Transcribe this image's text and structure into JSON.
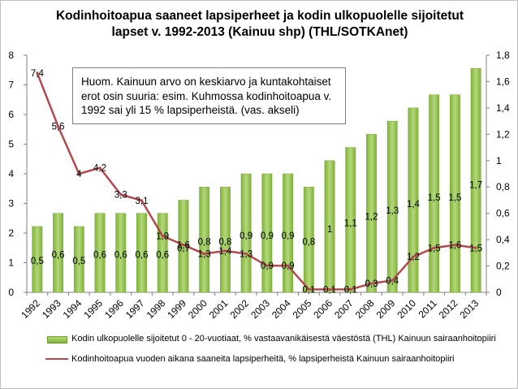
{
  "chart_data": {
    "type": "bar+line",
    "title_lines": [
      "Kodinhoitoapua  saaneet lapsiperheet ja kodin ulkopuolelle sijoitetut",
      "lapset v. 1992-2013 (Kainuu shp) (THL/SOTKAnet)"
    ],
    "categories": [
      "1992",
      "1993",
      "1994",
      "1995",
      "1996",
      "1997",
      "1998",
      "1999",
      "2000",
      "2001",
      "2002",
      "2003",
      "2004",
      "2005",
      "2006",
      "2007",
      "2008",
      "2009",
      "2010",
      "2011",
      "2012",
      "2013"
    ],
    "bar_series": {
      "name": "Kodin ulkopuolelle sijoitetut 0 - 20-vuotiaat, % vastaavanikäisestä väestöstä (THL) Kainuun sairaanhoitopiiri",
      "axis": "right",
      "values": [
        0.5,
        0.6,
        0.5,
        0.6,
        0.6,
        0.6,
        0.6,
        0.7,
        0.8,
        0.8,
        0.9,
        0.9,
        0.9,
        0.8,
        1.0,
        1.1,
        1.2,
        1.3,
        1.4,
        1.5,
        1.5,
        1.7
      ],
      "labels": [
        "0,5",
        "0,6",
        "0,5",
        "0,6",
        "0,6",
        "0,6",
        "0,6",
        "0,7",
        "0,8",
        "0,8",
        "0,9",
        "0,9",
        "0,9",
        "0,8",
        "1",
        "1,1",
        "1,2",
        "1,3",
        "1,4",
        "1,5",
        "1,5",
        "1,7"
      ],
      "color": "#92c050"
    },
    "line_series": {
      "name": "Kodinhoitoapua vuoden aikana saaneita lapsiperheitä, % lapsiperheistä Kainuun sairaanhoitopiiri",
      "axis": "left",
      "values": [
        7.4,
        5.6,
        4.0,
        4.2,
        3.3,
        3.1,
        1.9,
        1.6,
        1.3,
        1.4,
        1.3,
        0.9,
        0.9,
        0.1,
        0.1,
        0.1,
        0.3,
        0.4,
        1.2,
        1.5,
        1.6,
        1.5
      ],
      "labels": [
        "7,4",
        "5,6",
        "4",
        "4,2",
        "3,3",
        "3,1",
        "1,9",
        "1,6",
        "1,3",
        "1,4",
        "1,3",
        "0,9",
        "0,9",
        "0,1",
        "0,1",
        "0,1",
        "0,3",
        "0,4",
        "1,2",
        "1,5",
        "1,6",
        "1,5"
      ],
      "color": "#b04a4f"
    },
    "y_left": {
      "min": 0,
      "max": 8,
      "ticks": [
        "0",
        "1",
        "2",
        "3",
        "4",
        "5",
        "6",
        "7",
        "8"
      ]
    },
    "y_right": {
      "min": 0,
      "max": 1.8,
      "ticks": [
        "0",
        "0,2",
        "0,4",
        "0,6",
        "0,8",
        "1",
        "1,2",
        "1,4",
        "1,6",
        "1,8"
      ]
    },
    "grid": false,
    "legend_position": "bottom",
    "annotation": "Huom. Kainuun arvo on keskiarvo ja  kuntakohtaiset erot osin suuria: esim. Kuhmossa kodinhoitoapua v. 1992 sai yli 15 % lapsiperheistä. (vas. akseli)"
  }
}
